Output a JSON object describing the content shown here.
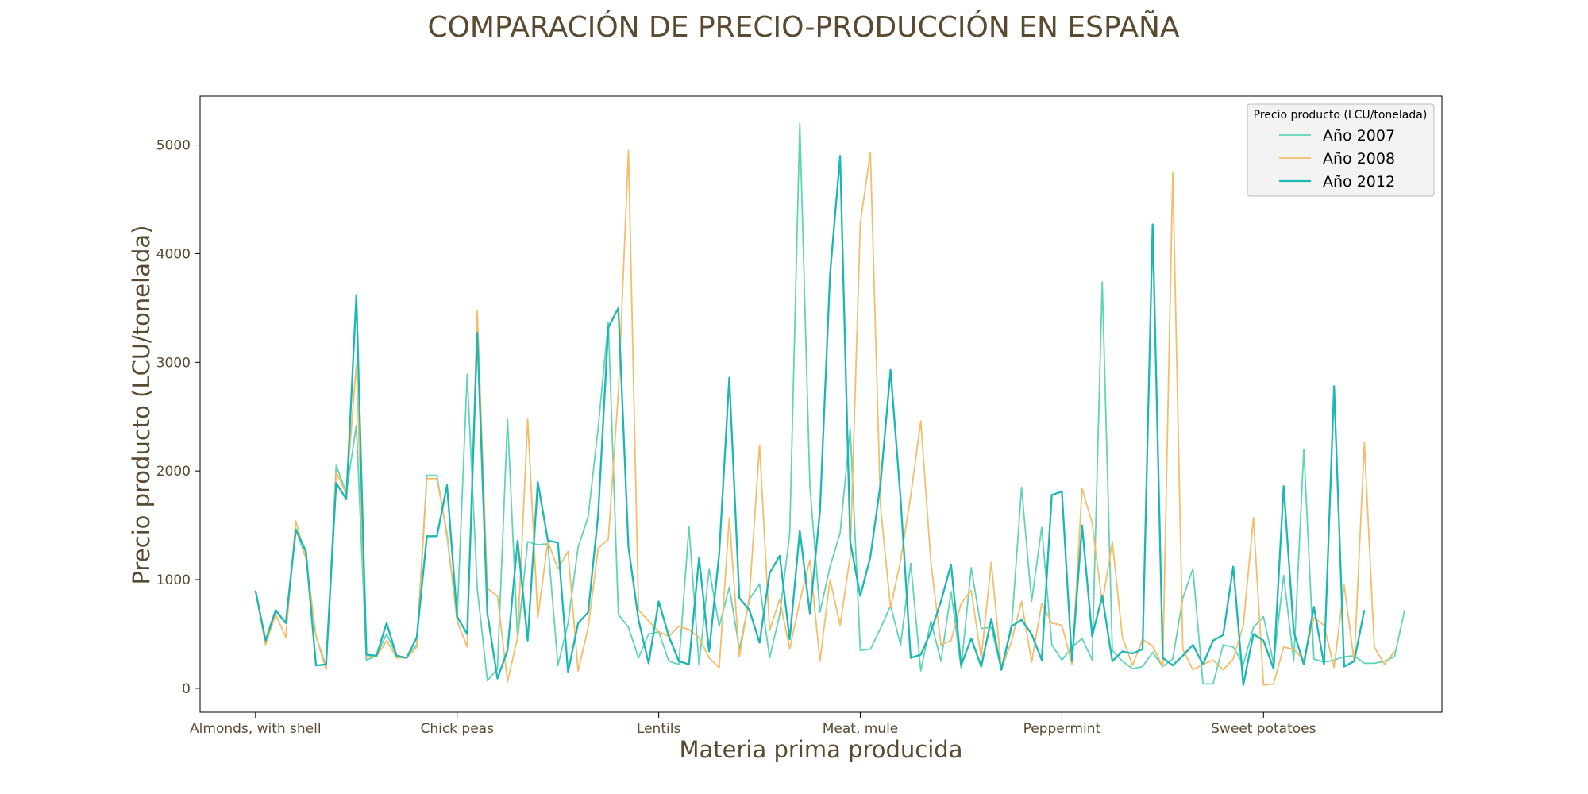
{
  "chart_data": {
    "type": "line",
    "title": "COMPARACIÓN DE PRECIO-PRODUCCIÓN EN ESPAÑA",
    "xlabel": "Materia prima producida",
    "ylabel": "Precio producto (LCU/tonelada)",
    "x_tick_labels": [
      "Almonds, with shell",
      "Chick peas",
      "Lentils",
      "Meat, mule",
      "Peppermint",
      "Sweet potatoes"
    ],
    "x_tick_indices": [
      0,
      20,
      40,
      60,
      80,
      100
    ],
    "x_range": [
      -5.5,
      117.7
    ],
    "y_ticks": [
      0,
      1000,
      2000,
      3000,
      4000,
      5000
    ],
    "ylim": [
      -220,
      5450
    ],
    "grid": false,
    "legend": {
      "title": "Precio producto (LCU/tonelada)",
      "position": "top-right"
    },
    "series": [
      {
        "name": "Año 2007",
        "color": "#5fd4b6",
        "values": [
          900,
          430,
          720,
          600,
          1470,
          1200,
          480,
          200,
          2050,
          1800,
          2420,
          260,
          300,
          500,
          300,
          280,
          400,
          1960,
          1960,
          1400,
          640,
          2890,
          920,
          70,
          180,
          2480,
          450,
          1350,
          1320,
          1330,
          210,
          600,
          1300,
          1580,
          2400,
          3370,
          680,
          560,
          280,
          500,
          520,
          250,
          220,
          1490,
          220,
          1100,
          570,
          930,
          360,
          820,
          960,
          280,
          680,
          1420,
          5200,
          1860,
          700,
          1120,
          1430,
          2390,
          350,
          360,
          550,
          760,
          400,
          1150,
          160,
          620,
          250,
          890,
          190,
          1110,
          550,
          560,
          170,
          550,
          1850,
          800,
          1480,
          400,
          260,
          380,
          460,
          260,
          3740,
          350,
          250,
          180,
          200,
          330,
          200,
          270,
          830,
          1100,
          40,
          40,
          400,
          380,
          220,
          560,
          660,
          230,
          1040,
          250,
          2200,
          270,
          240,
          260,
          290,
          300,
          230,
          230,
          250,
          290,
          720
        ]
      },
      {
        "name": "Año 2008",
        "color": "#f5bd6a",
        "values": [
          890,
          400,
          680,
          470,
          1540,
          1200,
          480,
          170,
          1990,
          1790,
          2980,
          300,
          290,
          440,
          280,
          280,
          380,
          1930,
          1930,
          1430,
          620,
          380,
          3480,
          920,
          850,
          60,
          470,
          2480,
          650,
          1350,
          1100,
          1260,
          160,
          560,
          1290,
          1370,
          2730,
          4950,
          720,
          620,
          520,
          480,
          570,
          540,
          470,
          280,
          190,
          1570,
          290,
          850,
          2240,
          530,
          820,
          360,
          800,
          1180,
          250,
          1000,
          580,
          1220,
          4280,
          4930,
          1680,
          740,
          1180,
          1770,
          2460,
          1160,
          400,
          440,
          780,
          900,
          280,
          1160,
          180,
          430,
          800,
          240,
          780,
          600,
          580,
          220,
          1840,
          1520,
          780,
          1350,
          470,
          210,
          450,
          390,
          200,
          4750,
          360,
          170,
          220,
          260,
          170,
          270,
          580,
          1570,
          30,
          40,
          380,
          360,
          260,
          650,
          580,
          190,
          950,
          240,
          2260,
          380,
          220,
          340
        ]
      },
      {
        "name": "Año 2012",
        "color": "#1ab8b2",
        "values": [
          900,
          440,
          720,
          600,
          1460,
          1260,
          210,
          220,
          1890,
          1740,
          3620,
          310,
          300,
          600,
          300,
          280,
          470,
          1400,
          1400,
          1870,
          660,
          500,
          3270,
          690,
          90,
          350,
          1360,
          440,
          1900,
          1360,
          1340,
          150,
          600,
          700,
          1600,
          3320,
          3500,
          1300,
          630,
          230,
          800,
          480,
          250,
          220,
          1200,
          340,
          1240,
          2860,
          830,
          720,
          420,
          1060,
          1220,
          450,
          1450,
          690,
          1630,
          3810,
          4900,
          1350,
          850,
          1210,
          1880,
          2930,
          1740,
          280,
          310,
          520,
          800,
          1140,
          210,
          460,
          200,
          640,
          170,
          570,
          630,
          500,
          260,
          1780,
          1810,
          250,
          1500,
          480,
          850,
          250,
          340,
          320,
          360,
          4270,
          280,
          210,
          300,
          400,
          220,
          440,
          490,
          1120,
          30,
          500,
          440,
          180,
          1860,
          520,
          220,
          750,
          220,
          2780,
          200,
          250,
          720
        ]
      }
    ]
  }
}
